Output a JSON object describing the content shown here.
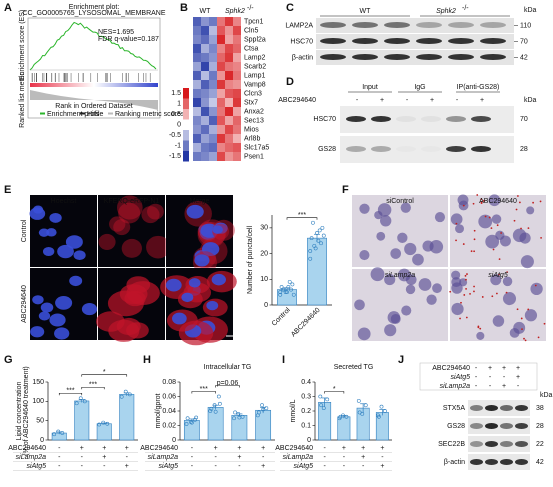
{
  "labels": [
    "A",
    "B",
    "C",
    "D",
    "E",
    "F",
    "G",
    "H",
    "I",
    "J"
  ],
  "gsea": {
    "title": "Enrichment plot:",
    "set": "CC_GO0005765_LYSOSOMAL_MEMBRANE",
    "nes": "NES=1.695",
    "fdr": "FDR q-value=0.187",
    "es_axis": "Enrichment score (ES)",
    "metric_axis": "Ranked list metric",
    "rank_axis": "Rank in Ordered Dataset",
    "legend": [
      "Enrichment profile",
      "Hits",
      "Ranking metric scores"
    ]
  },
  "heatmap": {
    "wt": "WT",
    "ko": "Sphk2",
    "ko_sup": "-/-",
    "highlight": "Lamp2",
    "genes": [
      "Tpcn1",
      "Cln5",
      "Sppl2a",
      "Ctsa",
      "Lamp2",
      "Scarb2",
      "Lamp1",
      "Vamp8",
      "Clcn3",
      "Stx7",
      "Anxa2",
      "Sec13",
      "Mios",
      "Arl8b",
      "Slc17a5",
      "Psen1"
    ],
    "scale": [
      1.5,
      1,
      0.5,
      0,
      -0.5,
      -1,
      -1.5
    ],
    "values": [
      [
        -1.2,
        -0.8,
        -1.0,
        0.9,
        1.3,
        0.8
      ],
      [
        -1.0,
        -1.3,
        -0.5,
        1.1,
        0.7,
        1.2
      ],
      [
        -0.9,
        -1.1,
        -0.7,
        1.4,
        0.6,
        0.9
      ],
      [
        -1.3,
        -0.6,
        -0.9,
        0.8,
        1.2,
        1.0
      ],
      [
        -1.1,
        -1.0,
        -0.8,
        1.0,
        1.3,
        0.6
      ],
      [
        -0.7,
        -1.4,
        -0.6,
        1.2,
        0.9,
        0.8
      ],
      [
        -1.2,
        -0.5,
        -1.0,
        0.7,
        1.4,
        0.9
      ],
      [
        -0.6,
        -1.2,
        -0.9,
        1.3,
        0.8,
        0.7
      ],
      [
        -1.0,
        -0.9,
        -0.7,
        0.6,
        1.1,
        1.2
      ],
      [
        -1.4,
        -0.8,
        -0.4,
        1.0,
        0.5,
        1.3
      ],
      [
        -0.5,
        -1.3,
        -0.8,
        0.9,
        1.4,
        0.6
      ],
      [
        -0.9,
        -0.6,
        -1.2,
        1.1,
        0.6,
        1.0
      ],
      [
        -0.8,
        -1.1,
        -0.6,
        0.7,
        1.2,
        0.9
      ],
      [
        -1.2,
        -0.7,
        -0.9,
        1.3,
        0.9,
        0.5
      ],
      [
        -0.6,
        -1.0,
        -1.1,
        0.8,
        1.0,
        1.1
      ],
      [
        -1.0,
        -0.9,
        -0.7,
        1.2,
        0.7,
        0.9
      ]
    ]
  },
  "blot_c": {
    "wt": "WT",
    "ko": "Sphk2",
    "ko_sup": "-/-",
    "unit": "kDa",
    "rows": [
      {
        "name": "LAMP2A",
        "kda": 110
      },
      {
        "name": "HSC70",
        "kda": 70
      },
      {
        "name": "β-actin",
        "kda": 42
      }
    ]
  },
  "blot_d": {
    "groups": [
      "Input",
      "IgG",
      "IP(anti-GS28)"
    ],
    "treatment": "ABC294640",
    "signs": [
      "-",
      "+",
      "-",
      "+",
      "-",
      "+"
    ],
    "unit": "kDa",
    "rows": [
      {
        "name": "HSC70",
        "kda": 70
      },
      {
        "name": "GS28",
        "kda": 28
      }
    ]
  },
  "images_e": {
    "columns": [
      "Hoechst",
      "KFERQ-eRFP-N1",
      "Merge"
    ],
    "rows": [
      "Control",
      "ABC294640"
    ]
  },
  "images_f": {
    "panels": [
      "siControl",
      "ABC294640",
      "siLamp2a",
      "siAtg5"
    ]
  },
  "chart_data": [
    {
      "type": "bar",
      "categories": [
        "Control",
        "ABC294640"
      ],
      "values": [
        6,
        26
      ],
      "errors": [
        0.7,
        1.5
      ],
      "points": [
        [
          4,
          5,
          6,
          7,
          5,
          8,
          6,
          7,
          4,
          6,
          9,
          5
        ],
        [
          18,
          22,
          24,
          26,
          28,
          30,
          32,
          25,
          27,
          23,
          29,
          21
        ]
      ],
      "ylabel": "Number of puncta/cell",
      "ylim": [
        0,
        35
      ],
      "yticks": [
        0,
        10,
        20,
        30
      ],
      "color": "#a9d4ee",
      "edge": "#2f7fbf",
      "annotations": [
        {
          "text": "***",
          "from": 0,
          "to": 1
        }
      ]
    },
    {
      "type": "bar",
      "values": [
        18,
        101,
        42,
        118
      ],
      "errors": [
        3,
        4,
        2,
        4
      ],
      "points": [
        [
          15,
          22,
          18
        ],
        [
          95,
          108,
          100
        ],
        [
          40,
          45,
          42
        ],
        [
          112,
          125,
          118
        ]
      ],
      "ylabel": [
        "Lipid concentration",
        "(% of ABC294640 treatment)"
      ],
      "ylim": [
        0,
        150
      ],
      "yticks": [
        0,
        50,
        100,
        150
      ],
      "color": "#a9d4ee",
      "edge": "#2f7fbf",
      "annotations": [
        {
          "text": "***",
          "from": 0,
          "to": 1
        },
        {
          "text": "***",
          "from": 1,
          "to": 2
        },
        {
          "text": "*",
          "from": 1,
          "to": 3
        }
      ],
      "conditions": [
        {
          "name": "ABC294640",
          "marks": [
            "-",
            "+",
            "+",
            "+"
          ]
        },
        {
          "name": "siLamp2a",
          "marks": [
            "-",
            "-",
            "+",
            "-"
          ]
        },
        {
          "name": "siAtg5",
          "marks": [
            "-",
            "-",
            "-",
            "+"
          ]
        }
      ]
    },
    {
      "type": "bar",
      "title": "Intracellular TG",
      "values": [
        0.027,
        0.045,
        0.034,
        0.041
      ],
      "errors": [
        0.002,
        0.003,
        0.002,
        0.004
      ],
      "points": [
        [
          0.022,
          0.025,
          0.028,
          0.03,
          0.024,
          0.031
        ],
        [
          0.04,
          0.048,
          0.06,
          0.043,
          0.039,
          0.05
        ],
        [
          0.03,
          0.036,
          0.032,
          0.038,
          0.031
        ],
        [
          0.034,
          0.048,
          0.044,
          0.038,
          0.042
        ]
      ],
      "ylabel": "mmol/gprot",
      "ylim": [
        0,
        0.08
      ],
      "yticks": [
        0,
        0.02,
        0.04,
        0.06,
        0.08
      ],
      "color": "#a9d4ee",
      "edge": "#2f7fbf",
      "annotations": [
        {
          "text": "***",
          "from": 0,
          "to": 1
        },
        {
          "text": "p=0.06",
          "from": 1,
          "to": 2
        }
      ],
      "conditions": [
        {
          "name": "ABC294640",
          "marks": [
            "-",
            "+",
            "+",
            "+"
          ]
        },
        {
          "name": "siLamp2a",
          "marks": [
            "-",
            "-",
            "+",
            "-"
          ]
        },
        {
          "name": "siAtg5",
          "marks": [
            "-",
            "-",
            "-",
            "+"
          ]
        }
      ]
    },
    {
      "type": "bar",
      "title": "Secreted TG",
      "values": [
        0.26,
        0.16,
        0.22,
        0.19
      ],
      "errors": [
        0.03,
        0.01,
        0.03,
        0.02
      ],
      "points": [
        [
          0.3,
          0.22,
          0.28,
          0.24
        ],
        [
          0.15,
          0.17,
          0.16,
          0.16
        ],
        [
          0.27,
          0.18,
          0.24,
          0.19
        ],
        [
          0.17,
          0.23,
          0.2,
          0.16
        ]
      ],
      "ylabel": "mmol/L",
      "ylim": [
        0,
        0.4
      ],
      "yticks": [
        0,
        0.1,
        0.2,
        0.3,
        0.4
      ],
      "color": "#a9d4ee",
      "edge": "#2f7fbf",
      "annotations": [
        {
          "text": "*",
          "from": 0,
          "to": 1
        }
      ],
      "conditions": [
        {
          "name": "ABC294640",
          "marks": [
            "-",
            "+",
            "+",
            "+"
          ]
        },
        {
          "name": "siLamp2a",
          "marks": [
            "-",
            "-",
            "+",
            "-"
          ]
        },
        {
          "name": "siAtg5",
          "marks": [
            "-",
            "-",
            "-",
            "+"
          ]
        }
      ]
    }
  ],
  "blot_j": {
    "conditions": [
      {
        "name": "ABC294640",
        "marks": [
          "-",
          "+",
          "+",
          "+"
        ]
      },
      {
        "name": "siAtg5",
        "marks": [
          "-",
          "-",
          "-",
          "+"
        ]
      },
      {
        "name": "siLamp2a",
        "marks": [
          "-",
          "-",
          "+",
          "-"
        ]
      }
    ],
    "unit": "kDa",
    "rows": [
      {
        "name": "STX5A",
        "kda": 38
      },
      {
        "name": "GS28",
        "kda": 28
      },
      {
        "name": "SEC22B",
        "kda": 22
      },
      {
        "name": "β-actin",
        "kda": 42
      }
    ]
  }
}
